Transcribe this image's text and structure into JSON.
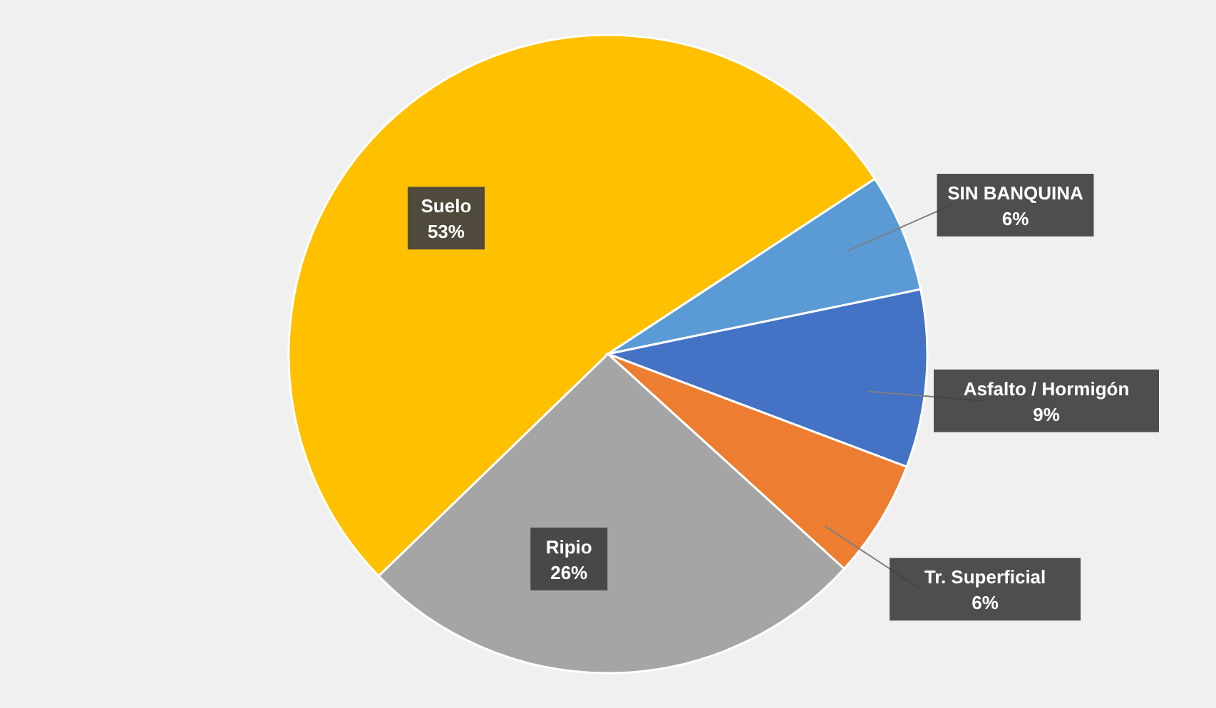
{
  "chart_data": {
    "type": "pie",
    "categories": [
      "Suelo",
      "SIN BANQUINA",
      "Asfalto / Hormigón",
      "Tr. Superficial",
      "Ripio"
    ],
    "values": [
      53,
      6,
      9,
      6,
      26
    ],
    "value_labels": [
      "53%",
      "6%",
      "9%",
      "6%",
      "26%"
    ],
    "colors": [
      "#ffc000",
      "#5b9bd5",
      "#4472c4",
      "#ed7d31",
      "#a5a5a5"
    ]
  }
}
